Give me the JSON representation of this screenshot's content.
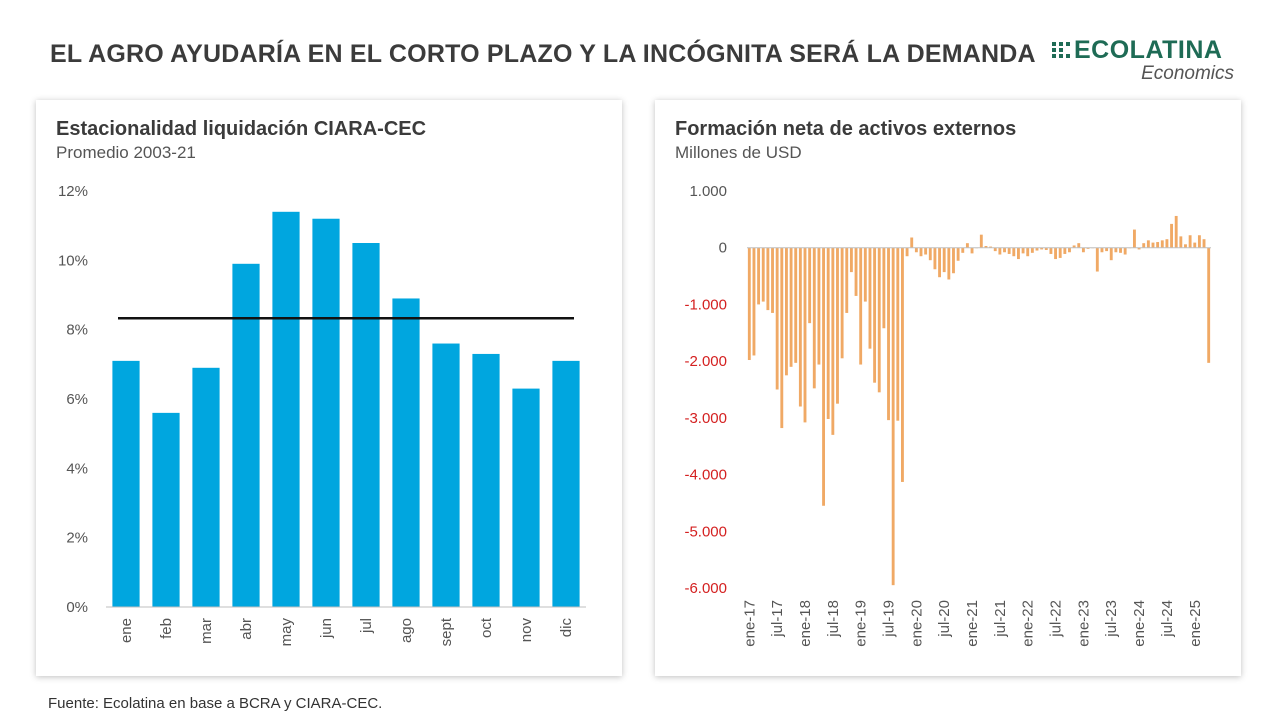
{
  "header": {
    "title": "EL AGRO AYUDARÍA EN EL CORTO PLAZO Y LA INCÓGNITA SERÁ LA DEMANDA",
    "logo_text": "ECOLATINA",
    "logo_sub": "Economics"
  },
  "left_panel": {
    "title": "Estacionalidad liquidación CIARA-CEC",
    "subtitle": "Promedio 2003-21"
  },
  "right_panel": {
    "title": "Formación neta de activos externos",
    "subtitle": "Millones de USD"
  },
  "footer": {
    "source": "Fuente: Ecolatina en base a BCRA y CIARA-CEC."
  },
  "colors": {
    "bar_blue": "#00a6df",
    "bar_orange": "#f0a965",
    "average_line": "#111111",
    "negative_tick": "#d42020",
    "brand_green": "#1e6b55"
  },
  "chart_data": [
    {
      "type": "bar",
      "title": "Estacionalidad liquidación CIARA-CEC",
      "subtitle": "Promedio 2003-21",
      "categories": [
        "ene",
        "feb",
        "mar",
        "abr",
        "may",
        "jun",
        "jul",
        "ago",
        "sept",
        "oct",
        "nov",
        "dic"
      ],
      "values": [
        7.1,
        5.6,
        6.9,
        9.9,
        11.4,
        11.2,
        10.5,
        8.9,
        7.6,
        7.3,
        6.3,
        7.1
      ],
      "reference_line": 8.33,
      "ylim": [
        0,
        12
      ],
      "yticks": [
        0,
        2,
        4,
        6,
        8,
        10,
        12
      ],
      "ytick_labels": [
        "0%",
        "2%",
        "4%",
        "6%",
        "8%",
        "10%",
        "12%"
      ],
      "grid": false,
      "legend": false
    },
    {
      "type": "bar",
      "title": "Formación neta de activos externos",
      "subtitle": "Millones de USD",
      "x_start": "ene-17",
      "x_tick_labels": [
        "ene-17",
        "jul-17",
        "ene-18",
        "jul-18",
        "ene-19",
        "jul-19",
        "ene-20",
        "jul-20",
        "ene-21",
        "jul-21",
        "ene-22",
        "jul-22",
        "ene-23",
        "jul-23",
        "ene-24",
        "jul-24",
        "ene-25"
      ],
      "values": [
        -1980,
        -1900,
        -1000,
        -950,
        -1100,
        -1150,
        -2500,
        -3180,
        -2250,
        -2100,
        -2030,
        -2800,
        -3080,
        -1330,
        -2480,
        -2060,
        -4550,
        -3020,
        -3300,
        -2750,
        -1950,
        -1150,
        -430,
        -850,
        -2060,
        -950,
        -1780,
        -2380,
        -2550,
        -1420,
        -3040,
        -5950,
        -3050,
        -4130,
        -150,
        180,
        -80,
        -150,
        -120,
        -220,
        -380,
        -520,
        -430,
        -560,
        -450,
        -230,
        -90,
        80,
        -100,
        0,
        230,
        30,
        20,
        -60,
        -120,
        -80,
        -110,
        -150,
        -200,
        -100,
        -150,
        -90,
        -50,
        -30,
        -40,
        -110,
        -200,
        -180,
        -110,
        -80,
        40,
        80,
        -80,
        -20,
        0,
        -420,
        -80,
        -60,
        -220,
        -80,
        -90,
        -120,
        0,
        320,
        -30,
        80,
        130,
        90,
        100,
        130,
        150,
        420,
        560,
        200,
        60,
        220,
        90,
        220,
        150,
        -2030
      ],
      "ylim": [
        -6000,
        1000
      ],
      "yticks": [
        1000,
        0,
        -1000,
        -2000,
        -3000,
        -4000,
        -5000,
        -6000
      ],
      "ytick_labels": [
        "1.000",
        "0",
        "-1.000",
        "-2.000",
        "-3.000",
        "-4.000",
        "-5.000",
        "-6.000"
      ],
      "grid": false,
      "legend": false
    }
  ]
}
